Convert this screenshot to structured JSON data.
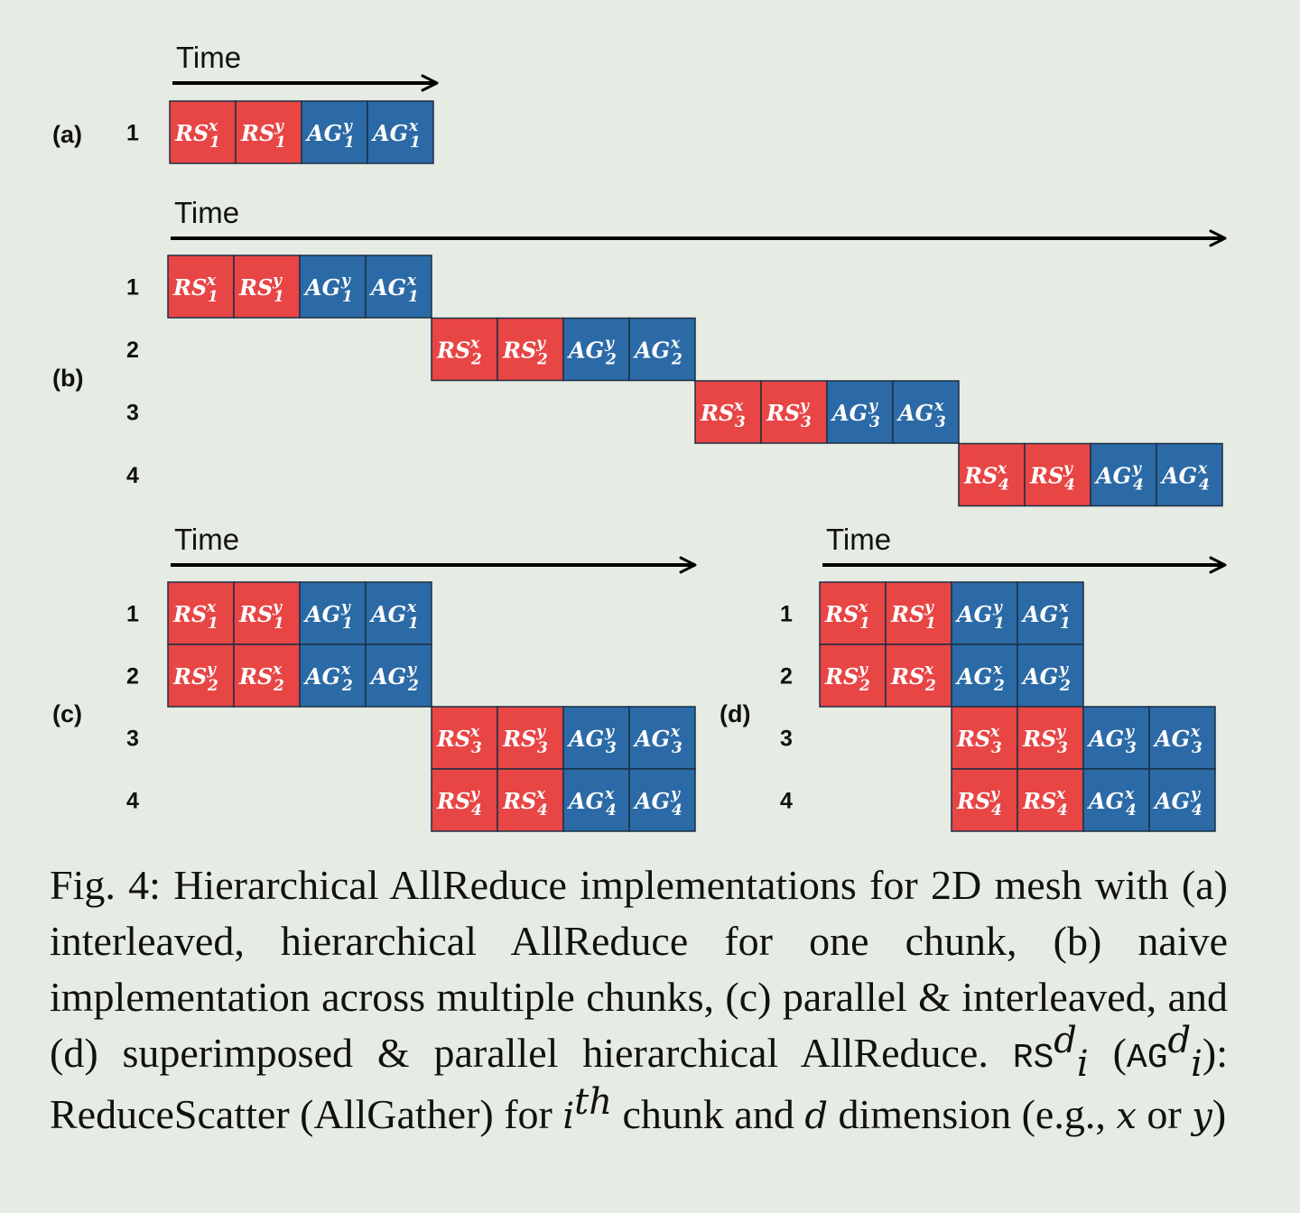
{
  "colors": {
    "rs": "#e84545",
    "ag": "#2b6aa6",
    "border": "#1c2f45",
    "axis": "#000000"
  },
  "time_label": "Time",
  "panels": [
    {
      "label": "(a)",
      "rows": [
        {
          "id": "1",
          "start": 0,
          "cells": [
            {
              "op": "RS",
              "d": "x",
              "i": "1"
            },
            {
              "op": "RS",
              "d": "y",
              "i": "1"
            },
            {
              "op": "AG",
              "d": "y",
              "i": "1"
            },
            {
              "op": "AG",
              "d": "x",
              "i": "1"
            }
          ]
        }
      ]
    },
    {
      "label": "(b)",
      "rows": [
        {
          "id": "1",
          "start": 0,
          "cells": [
            {
              "op": "RS",
              "d": "x",
              "i": "1"
            },
            {
              "op": "RS",
              "d": "y",
              "i": "1"
            },
            {
              "op": "AG",
              "d": "y",
              "i": "1"
            },
            {
              "op": "AG",
              "d": "x",
              "i": "1"
            }
          ]
        },
        {
          "id": "2",
          "start": 4,
          "cells": [
            {
              "op": "RS",
              "d": "x",
              "i": "2"
            },
            {
              "op": "RS",
              "d": "y",
              "i": "2"
            },
            {
              "op": "AG",
              "d": "y",
              "i": "2"
            },
            {
              "op": "AG",
              "d": "x",
              "i": "2"
            }
          ]
        },
        {
          "id": "3",
          "start": 8,
          "cells": [
            {
              "op": "RS",
              "d": "x",
              "i": "3"
            },
            {
              "op": "RS",
              "d": "y",
              "i": "3"
            },
            {
              "op": "AG",
              "d": "y",
              "i": "3"
            },
            {
              "op": "AG",
              "d": "x",
              "i": "3"
            }
          ]
        },
        {
          "id": "4",
          "start": 12,
          "cells": [
            {
              "op": "RS",
              "d": "x",
              "i": "4"
            },
            {
              "op": "RS",
              "d": "y",
              "i": "4"
            },
            {
              "op": "AG",
              "d": "y",
              "i": "4"
            },
            {
              "op": "AG",
              "d": "x",
              "i": "4"
            }
          ]
        }
      ]
    },
    {
      "label": "(c)",
      "rows": [
        {
          "id": "1",
          "start": 0,
          "cells": [
            {
              "op": "RS",
              "d": "x",
              "i": "1"
            },
            {
              "op": "RS",
              "d": "y",
              "i": "1"
            },
            {
              "op": "AG",
              "d": "y",
              "i": "1"
            },
            {
              "op": "AG",
              "d": "x",
              "i": "1"
            }
          ]
        },
        {
          "id": "2",
          "start": 0,
          "cells": [
            {
              "op": "RS",
              "d": "y",
              "i": "2"
            },
            {
              "op": "RS",
              "d": "x",
              "i": "2"
            },
            {
              "op": "AG",
              "d": "x",
              "i": "2"
            },
            {
              "op": "AG",
              "d": "y",
              "i": "2"
            }
          ]
        },
        {
          "id": "3",
          "start": 4,
          "cells": [
            {
              "op": "RS",
              "d": "x",
              "i": "3"
            },
            {
              "op": "RS",
              "d": "y",
              "i": "3"
            },
            {
              "op": "AG",
              "d": "y",
              "i": "3"
            },
            {
              "op": "AG",
              "d": "x",
              "i": "3"
            }
          ]
        },
        {
          "id": "4",
          "start": 4,
          "cells": [
            {
              "op": "RS",
              "d": "y",
              "i": "4"
            },
            {
              "op": "RS",
              "d": "x",
              "i": "4"
            },
            {
              "op": "AG",
              "d": "x",
              "i": "4"
            },
            {
              "op": "AG",
              "d": "y",
              "i": "4"
            }
          ]
        }
      ]
    },
    {
      "label": "(d)",
      "rows": [
        {
          "id": "1",
          "start": 0,
          "cells": [
            {
              "op": "RS",
              "d": "x",
              "i": "1"
            },
            {
              "op": "RS",
              "d": "y",
              "i": "1"
            },
            {
              "op": "AG",
              "d": "y",
              "i": "1"
            },
            {
              "op": "AG",
              "d": "x",
              "i": "1"
            }
          ]
        },
        {
          "id": "2",
          "start": 0,
          "cells": [
            {
              "op": "RS",
              "d": "y",
              "i": "2"
            },
            {
              "op": "RS",
              "d": "x",
              "i": "2"
            },
            {
              "op": "AG",
              "d": "x",
              "i": "2"
            },
            {
              "op": "AG",
              "d": "y",
              "i": "2"
            }
          ]
        },
        {
          "id": "3",
          "start": 2,
          "cells": [
            {
              "op": "RS",
              "d": "x",
              "i": "3"
            },
            {
              "op": "RS",
              "d": "y",
              "i": "3"
            },
            {
              "op": "AG",
              "d": "y",
              "i": "3"
            },
            {
              "op": "AG",
              "d": "x",
              "i": "3"
            }
          ]
        },
        {
          "id": "4",
          "start": 2,
          "cells": [
            {
              "op": "RS",
              "d": "y",
              "i": "4"
            },
            {
              "op": "RS",
              "d": "x",
              "i": "4"
            },
            {
              "op": "AG",
              "d": "x",
              "i": "4"
            },
            {
              "op": "AG",
              "d": "y",
              "i": "4"
            }
          ]
        }
      ]
    }
  ],
  "caption": {
    "prefix": "Fig. 4: Hierarchical AllReduce implementations for 2D mesh with (a) interleaved, hierarchical AllReduce for one chunk, (b) naive implementation across multiple chunks, (c) parallel & interleaved, and (d) superimposed & parallel hierarchical AllReduce.",
    "rs_sym": "RS",
    "ag_sym": "AG",
    "d_sym": "d",
    "i_sym": "i",
    "th_sym": "th",
    "open_paren": "(",
    "close_paren": "):",
    "desc_1": "ReduceScatter (AllGather) for",
    "desc_2": "chunk and",
    "desc_3": "dimension (e.g.,",
    "x_sym": "x",
    "or_text": "or",
    "y_sym": "y",
    "end_text": ")"
  }
}
